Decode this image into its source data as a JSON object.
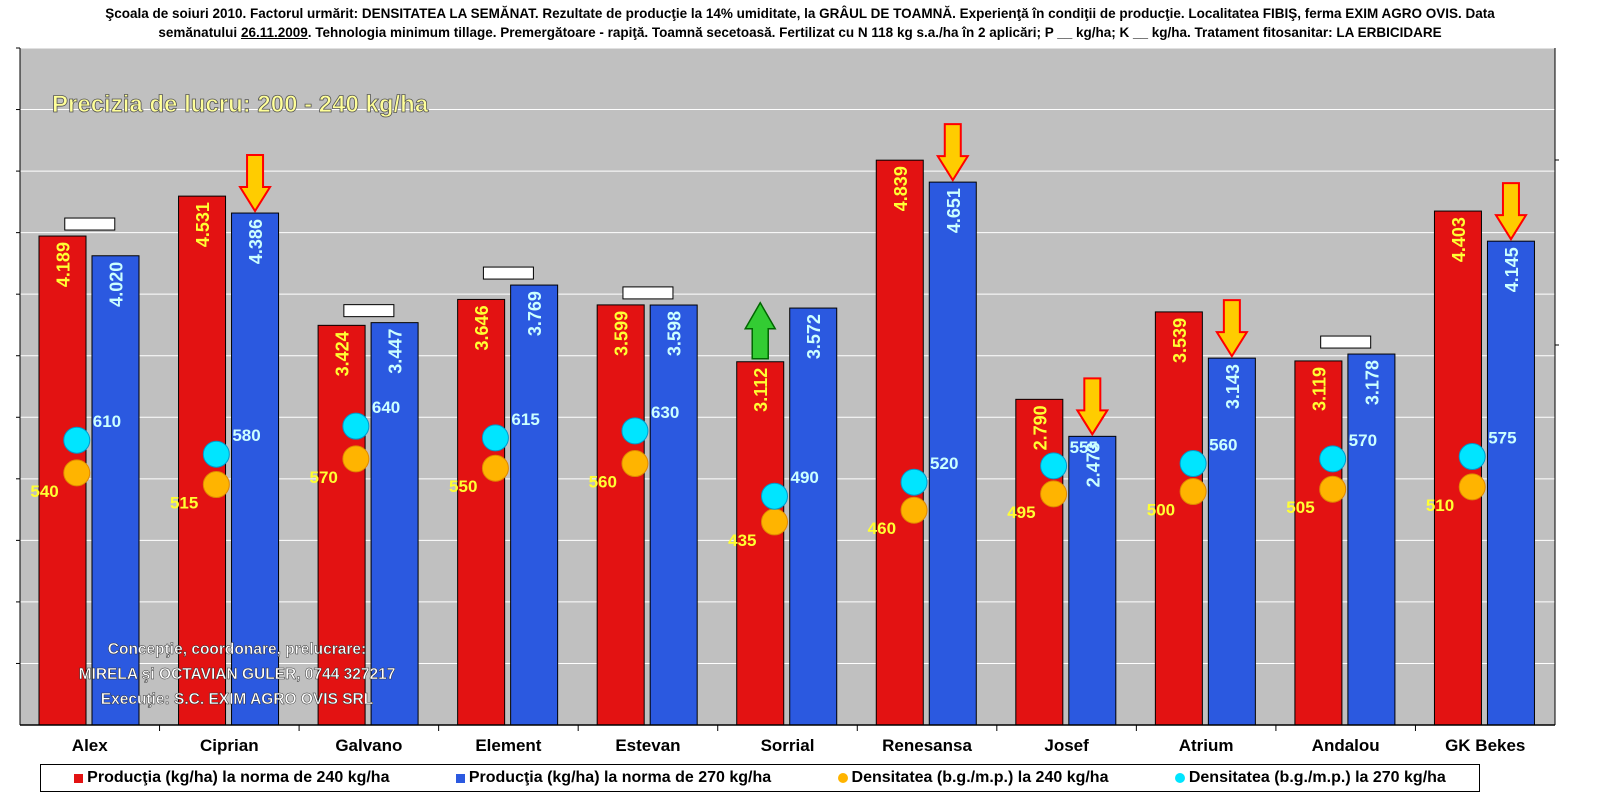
{
  "title": {
    "line1": "Şcoala de soiuri 2010. Factorul urmărit: DENSITATEA LA SEMĂNAT. Rezultate de producţie la 14% umiditate, la GRÂUL DE TOAMNĂ. Experienţă în condiţii de producţie. Localitatea FIBIŞ, ferma EXIM AGRO OVIS. Data",
    "line2_prefix": "semănatului ",
    "line2_date": "26.11.2009",
    "line2_suffix": ". Tehnologia minimum tillage. Premergătoare - rapiţă. Toamnă secetoasă. Fertilizat cu N 118 kg s.a./ha în 2 aplicări; P __ kg/ha; K __ kg/ha. Tratament fitosanitar: LA ERBICIDARE"
  },
  "annotation": "Precizia de lucru: 200 - 240 kg/ha",
  "credits": {
    "line1": "Concepţie, coordonare, prelucrare:",
    "line2": "MIRELA şi OCTAVIAN GULER, 0744 327217",
    "line3": "Execuţie: S.C. EXIM AGRO OVIS SRL"
  },
  "colors": {
    "plot_bg": "#c0c0c0",
    "red_bar": "#e31212",
    "blue_bar": "#2b59e0",
    "orange_dot": "#ffb400",
    "cyan_dot": "#00e5ff",
    "red_label": "#ffff33",
    "blue_label": "#ccffff",
    "arrow_down": "#ffcc00",
    "arrow_up": "#33cc33"
  },
  "chart_data": {
    "type": "bar",
    "categories": [
      "Alex",
      "Ciprian",
      "Galvano",
      "Element",
      "Estevan",
      "Sorrial",
      "Renesansa",
      "Josef",
      "Atrium",
      "Andalou",
      "GK Bekes"
    ],
    "series": [
      {
        "name": "Producţia (kg/ha) la norma de 240 kg/ha",
        "axis": "left",
        "values": [
          4189,
          4531,
          3424,
          3646,
          3599,
          3112,
          4839,
          2790,
          3539,
          3119,
          4403
        ],
        "labels": [
          "4.189",
          "4.531",
          "3.424",
          "3.646",
          "3.599",
          "3.112",
          "4.839",
          "2.790",
          "3.539",
          "3.119",
          "4.403"
        ]
      },
      {
        "name": "Producţia (kg/ha) la norma de 270 kg/ha",
        "axis": "left",
        "values": [
          4020,
          4386,
          3447,
          3769,
          3598,
          3572,
          4651,
          2473,
          3143,
          3178,
          4145
        ],
        "labels": [
          "4.020",
          "4.386",
          "3.447",
          "3.769",
          "3.598",
          "3.572",
          "4.651",
          "2.473",
          "3.143",
          "3.178",
          "4.145"
        ]
      },
      {
        "name": "Densitatea (b.g./m.p.) la 240 kg/ha",
        "axis": "right",
        "values": [
          540,
          515,
          570,
          550,
          560,
          435,
          460,
          495,
          500,
          505,
          510
        ]
      },
      {
        "name": "Densitatea (b.g./m.p.) la 270 kg/ha",
        "axis": "right",
        "values": [
          610,
          580,
          640,
          615,
          630,
          490,
          520,
          555,
          560,
          570,
          575
        ]
      }
    ],
    "markers": [
      {
        "category": "Alex",
        "type": "equal"
      },
      {
        "category": "Ciprian",
        "type": "down"
      },
      {
        "category": "Galvano",
        "type": "equal"
      },
      {
        "category": "Element",
        "type": "equal"
      },
      {
        "category": "Estevan",
        "type": "equal"
      },
      {
        "category": "Sorrial",
        "type": "up"
      },
      {
        "category": "Renesansa",
        "type": "down"
      },
      {
        "category": "Josef",
        "type": "down"
      },
      {
        "category": "Atrium",
        "type": "down"
      },
      {
        "category": "Andalou",
        "type": "equal"
      },
      {
        "category": "GK Bekes",
        "type": "down"
      }
    ],
    "ylim_left": [
      0,
      5800
    ],
    "ylim_right": [
      0,
      1450
    ],
    "grid": true,
    "legend_position": "bottom"
  }
}
